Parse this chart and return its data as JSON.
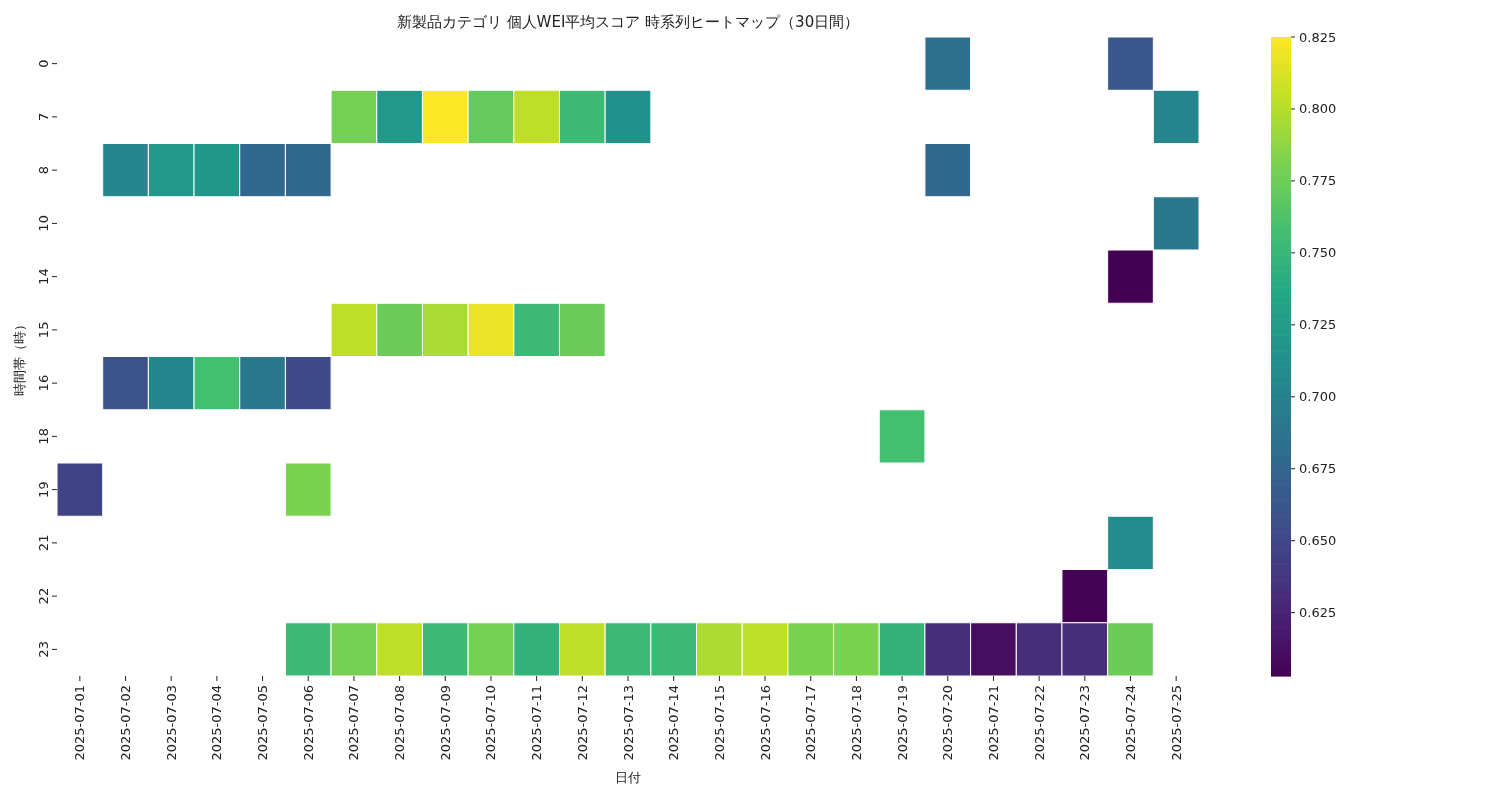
{
  "chart_data": {
    "type": "heatmap",
    "title": "新製品カテゴリ 個人WEI平均スコア 時系列ヒートマップ（30日間）",
    "xlabel": "日付",
    "ylabel": "時間帯（時）",
    "categories": [
      "2025-07-01",
      "2025-07-02",
      "2025-07-03",
      "2025-07-04",
      "2025-07-05",
      "2025-07-06",
      "2025-07-07",
      "2025-07-08",
      "2025-07-09",
      "2025-07-10",
      "2025-07-11",
      "2025-07-12",
      "2025-07-13",
      "2025-07-14",
      "2025-07-15",
      "2025-07-16",
      "2025-07-17",
      "2025-07-18",
      "2025-07-19",
      "2025-07-20",
      "2025-07-21",
      "2025-07-22",
      "2025-07-23",
      "2025-07-24",
      "2025-07-25"
    ],
    "y_categories": [
      "0",
      "7",
      "8",
      "10",
      "14",
      "15",
      "16",
      "18",
      "19",
      "21",
      "22",
      "23"
    ],
    "cells": [
      [
        null,
        null,
        null,
        null,
        null,
        null,
        null,
        null,
        null,
        null,
        null,
        null,
        null,
        null,
        null,
        null,
        null,
        null,
        null,
        0.685,
        null,
        null,
        null,
        0.663,
        null
      ],
      [
        null,
        null,
        null,
        null,
        null,
        null,
        0.778,
        0.721,
        0.825,
        0.772,
        0.803,
        0.754,
        0.714,
        null,
        null,
        null,
        null,
        null,
        null,
        null,
        null,
        null,
        null,
        null,
        0.703
      ],
      [
        null,
        0.705,
        0.721,
        0.72,
        0.678,
        0.678,
        null,
        null,
        null,
        null,
        null,
        null,
        null,
        null,
        null,
        null,
        null,
        null,
        null,
        0.678,
        null,
        null,
        null,
        null,
        null
      ],
      [
        null,
        null,
        null,
        null,
        null,
        null,
        null,
        null,
        null,
        null,
        null,
        null,
        null,
        null,
        null,
        null,
        null,
        null,
        null,
        null,
        null,
        null,
        null,
        null,
        0.692
      ],
      [
        null,
        null,
        null,
        null,
        null,
        null,
        null,
        null,
        null,
        null,
        null,
        null,
        null,
        null,
        null,
        null,
        null,
        null,
        null,
        null,
        null,
        null,
        null,
        0.603,
        null
      ],
      [
        null,
        null,
        null,
        null,
        null,
        null,
        0.803,
        0.775,
        0.796,
        0.818,
        0.754,
        0.775,
        null,
        null,
        null,
        null,
        null,
        null,
        null,
        null,
        null,
        null,
        null,
        null,
        null
      ],
      [
        null,
        0.659,
        0.703,
        0.758,
        0.692,
        0.654,
        null,
        null,
        null,
        null,
        null,
        null,
        null,
        null,
        null,
        null,
        null,
        null,
        null,
        null,
        null,
        null,
        null,
        null,
        null
      ],
      [
        null,
        null,
        null,
        null,
        null,
        null,
        null,
        null,
        null,
        null,
        null,
        null,
        null,
        null,
        null,
        null,
        null,
        null,
        0.758,
        null,
        null,
        null,
        null,
        null,
        null
      ],
      [
        0.647,
        null,
        null,
        null,
        null,
        0.781,
        null,
        null,
        null,
        null,
        null,
        null,
        null,
        null,
        null,
        null,
        null,
        null,
        null,
        null,
        null,
        null,
        null,
        null,
        null
      ],
      [
        null,
        null,
        null,
        null,
        null,
        null,
        null,
        null,
        null,
        null,
        null,
        null,
        null,
        null,
        null,
        null,
        null,
        null,
        null,
        null,
        null,
        null,
        null,
        0.71,
        null
      ],
      [
        null,
        null,
        null,
        null,
        null,
        null,
        null,
        null,
        null,
        null,
        null,
        null,
        null,
        null,
        null,
        null,
        null,
        null,
        null,
        null,
        null,
        null,
        0.604,
        null,
        null
      ],
      [
        null,
        null,
        null,
        null,
        null,
        0.754,
        0.778,
        0.803,
        0.754,
        0.779,
        0.747,
        0.803,
        0.753,
        0.753,
        0.797,
        0.803,
        0.781,
        0.781,
        0.747,
        0.632,
        0.612,
        0.632,
        0.632,
        0.775,
        null
      ]
    ],
    "clim": [
      0.603,
      0.825
    ],
    "cticks": [
      0.625,
      {
        "value": 0.65,
        "label": "0.650"
      },
      0.675,
      {
        "value": 0.7,
        "label": "0.700"
      },
      0.725,
      {
        "value": 0.75,
        "label": "0.750"
      },
      0.775,
      {
        "value": 0.8,
        "label": "0.800"
      },
      0.825
    ]
  }
}
